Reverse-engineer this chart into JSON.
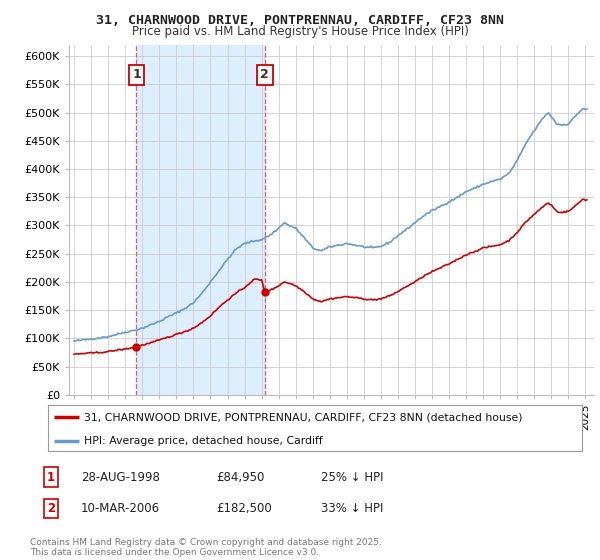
{
  "title": "31, CHARNWOOD DRIVE, PONTPRENNAU, CARDIFF, CF23 8NN",
  "subtitle": "Price paid vs. HM Land Registry's House Price Index (HPI)",
  "ylim": [
    0,
    620000
  ],
  "xlim_start": 1994.7,
  "xlim_end": 2025.5,
  "yticks": [
    0,
    50000,
    100000,
    150000,
    200000,
    250000,
    300000,
    350000,
    400000,
    450000,
    500000,
    550000,
    600000
  ],
  "ytick_labels": [
    "£0",
    "£50K",
    "£100K",
    "£150K",
    "£200K",
    "£250K",
    "£300K",
    "£350K",
    "£400K",
    "£450K",
    "£500K",
    "£550K",
    "£600K"
  ],
  "xticks": [
    1995,
    1996,
    1997,
    1998,
    1999,
    2000,
    2001,
    2002,
    2003,
    2004,
    2005,
    2006,
    2007,
    2008,
    2009,
    2010,
    2011,
    2012,
    2013,
    2014,
    2015,
    2016,
    2017,
    2018,
    2019,
    2020,
    2021,
    2022,
    2023,
    2024,
    2025
  ],
  "background_color": "#ffffff",
  "plot_bg_color": "#ffffff",
  "grid_color": "#cccccc",
  "hpi_color": "#6699cc",
  "price_color": "#cc0000",
  "shade_color": "#ddeeff",
  "transaction1_date": 1998.66,
  "transaction1_price": 84950,
  "transaction1_label": "1",
  "transaction2_date": 2006.19,
  "transaction2_price": 182500,
  "transaction2_label": "2",
  "legend_line1": "31, CHARNWOOD DRIVE, PONTPRENNAU, CARDIFF, CF23 8NN (detached house)",
  "legend_line2": "HPI: Average price, detached house, Cardiff",
  "footer": "Contains HM Land Registry data © Crown copyright and database right 2025.\nThis data is licensed under the Open Government Licence v3.0.",
  "table_rows": [
    {
      "label": "1",
      "date": "28-AUG-1998",
      "price": "£84,950",
      "hpi": "25% ↓ HPI"
    },
    {
      "label": "2",
      "date": "10-MAR-2006",
      "price": "£182,500",
      "hpi": "33% ↓ HPI"
    }
  ]
}
